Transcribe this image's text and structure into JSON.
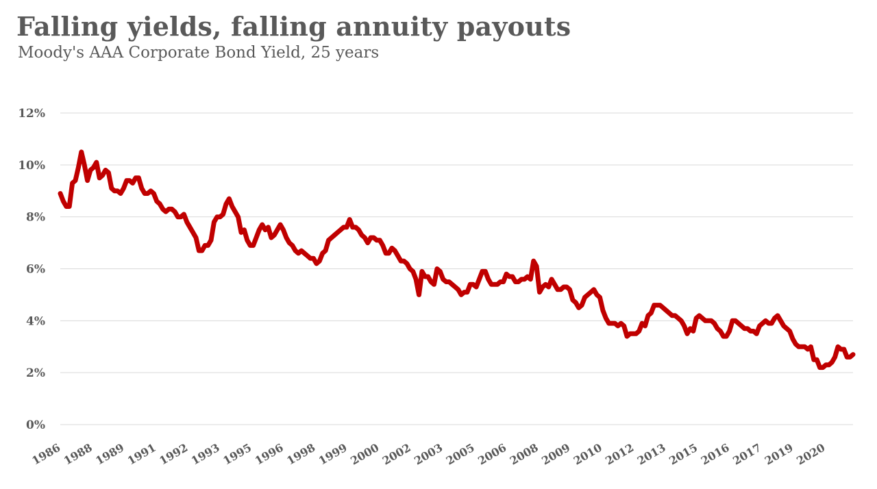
{
  "chart_data": {
    "type": "line",
    "title": "Falling yields, falling annuity payouts",
    "subtitle": "Moody's AAA Corporate Bond Yield, 25 years",
    "xlabel": "",
    "ylabel": "",
    "ylim": [
      0,
      12
    ],
    "yticks": [
      "0%",
      "2%",
      "4%",
      "6%",
      "8%",
      "10%",
      "12%"
    ],
    "ytick_values": [
      0,
      2,
      4,
      6,
      8,
      10,
      12
    ],
    "xticks": [
      "1986",
      "1988",
      "1989",
      "1991",
      "1992",
      "1993",
      "1995",
      "1996",
      "1998",
      "1999",
      "2000",
      "2002",
      "2003",
      "2005",
      "2006",
      "2008",
      "2009",
      "2010",
      "2012",
      "2013",
      "2015",
      "2016",
      "2017",
      "2019",
      "2020"
    ],
    "grid": true,
    "legend": "none",
    "colors": {
      "series": "#c00000",
      "grid": "#d9d9d9",
      "text": "#595959"
    },
    "series": [
      {
        "values": [
          8.9,
          8.6,
          8.4,
          8.4,
          9.3,
          9.4,
          9.9,
          10.5,
          10.0,
          9.4,
          9.8,
          9.9,
          10.1,
          9.5,
          9.6,
          9.8,
          9.7,
          9.1,
          9.0,
          9.0,
          8.9,
          9.1,
          9.4,
          9.4,
          9.3,
          9.5,
          9.5,
          9.1,
          8.9,
          8.9,
          9.0,
          8.9,
          8.6,
          8.5,
          8.3,
          8.2,
          8.3,
          8.3,
          8.2,
          8.0,
          8.0,
          8.1,
          7.8,
          7.6,
          7.4,
          7.2,
          6.7,
          6.7,
          6.9,
          6.9,
          7.1,
          7.8,
          8.0,
          8.0,
          8.1,
          8.5,
          8.7,
          8.4,
          8.2,
          8.0,
          7.4,
          7.5,
          7.1,
          6.9,
          6.9,
          7.2,
          7.5,
          7.7,
          7.5,
          7.6,
          7.2,
          7.3,
          7.5,
          7.7,
          7.5,
          7.2,
          7.0,
          6.9,
          6.7,
          6.6,
          6.7,
          6.6,
          6.5,
          6.4,
          6.4,
          6.2,
          6.3,
          6.6,
          6.7,
          7.1,
          7.2,
          7.3,
          7.4,
          7.5,
          7.6,
          7.6,
          7.9,
          7.6,
          7.6,
          7.5,
          7.3,
          7.2,
          7.0,
          7.2,
          7.2,
          7.1,
          7.1,
          6.9,
          6.6,
          6.6,
          6.8,
          6.7,
          6.5,
          6.3,
          6.3,
          6.2,
          6.0,
          5.9,
          5.6,
          5.0,
          5.9,
          5.7,
          5.7,
          5.5,
          5.4,
          6.0,
          5.9,
          5.6,
          5.5,
          5.5,
          5.4,
          5.3,
          5.2,
          5.0,
          5.1,
          5.1,
          5.4,
          5.4,
          5.3,
          5.6,
          5.9,
          5.9,
          5.6,
          5.4,
          5.4,
          5.4,
          5.5,
          5.5,
          5.8,
          5.7,
          5.7,
          5.5,
          5.5,
          5.6,
          5.6,
          5.7,
          5.6,
          6.3,
          6.1,
          5.1,
          5.3,
          5.4,
          5.3,
          5.6,
          5.4,
          5.2,
          5.2,
          5.3,
          5.3,
          5.2,
          4.8,
          4.7,
          4.5,
          4.6,
          4.9,
          5.0,
          5.1,
          5.2,
          5.0,
          4.9,
          4.4,
          4.1,
          3.9,
          3.9,
          3.9,
          3.8,
          3.9,
          3.8,
          3.4,
          3.5,
          3.5,
          3.5,
          3.6,
          3.9,
          3.8,
          4.2,
          4.3,
          4.6,
          4.6,
          4.6,
          4.5,
          4.4,
          4.3,
          4.2,
          4.2,
          4.1,
          4.0,
          3.8,
          3.5,
          3.7,
          3.6,
          4.1,
          4.2,
          4.1,
          4.0,
          4.0,
          4.0,
          3.9,
          3.7,
          3.6,
          3.4,
          3.4,
          3.6,
          4.0,
          4.0,
          3.9,
          3.8,
          3.7,
          3.7,
          3.6,
          3.6,
          3.5,
          3.8,
          3.9,
          4.0,
          3.9,
          3.9,
          4.1,
          4.2,
          4.0,
          3.8,
          3.7,
          3.6,
          3.3,
          3.1,
          3.0,
          3.0,
          3.0,
          2.9,
          3.0,
          2.5,
          2.5,
          2.2,
          2.2,
          2.3,
          2.3,
          2.4,
          2.6,
          3.0,
          2.9,
          2.9,
          2.6,
          2.6,
          2.7
        ]
      }
    ]
  }
}
